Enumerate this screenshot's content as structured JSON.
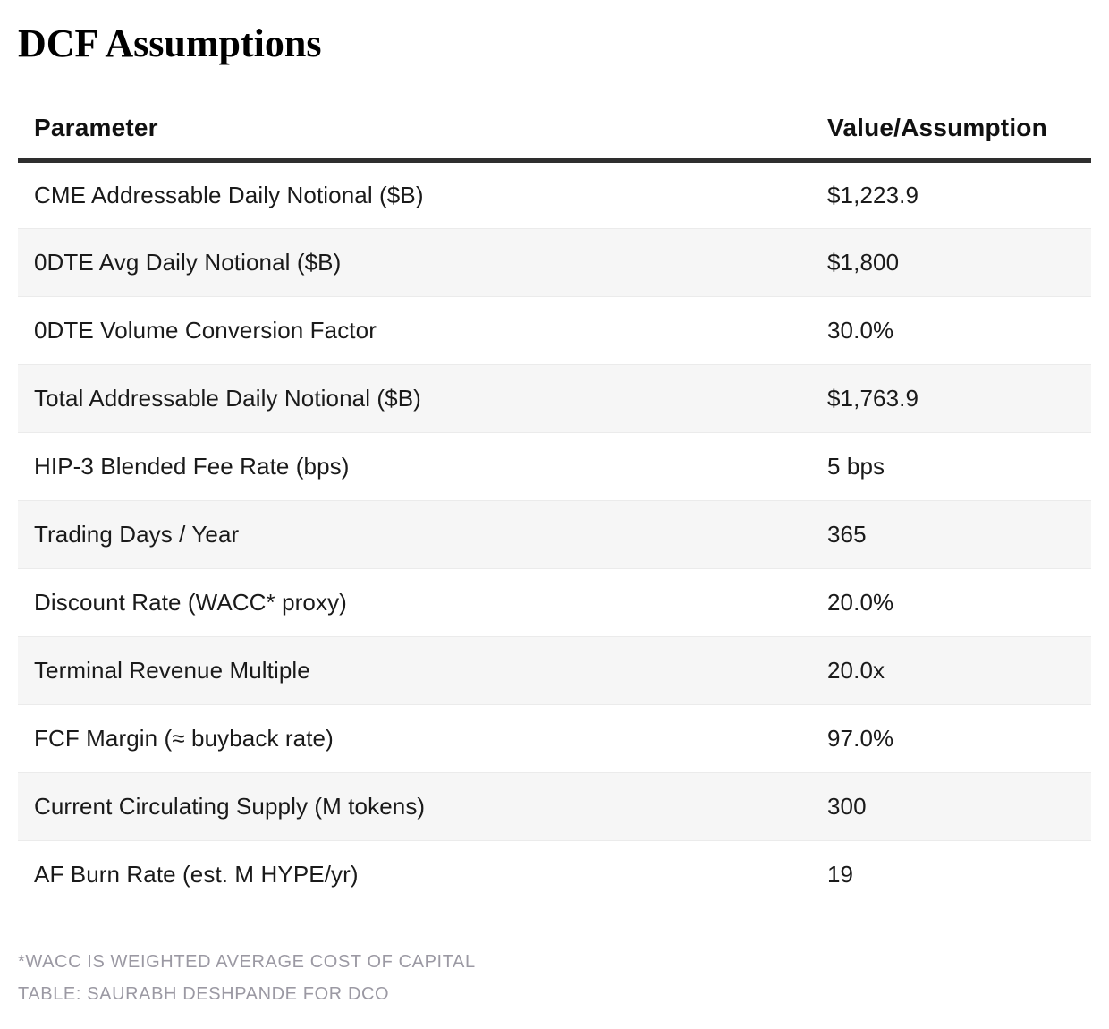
{
  "page_title": "DCF Assumptions",
  "chart_data": {
    "type": "table",
    "title": "DCF Assumptions",
    "columns": [
      "Parameter",
      "Value/Assumption"
    ],
    "rows": [
      [
        "CME Addressable Daily Notional ($B)",
        "$1,223.9"
      ],
      [
        "0DTE Avg Daily Notional ($B)",
        "$1,800"
      ],
      [
        "0DTE Volume Conversion Factor",
        "30.0%"
      ],
      [
        "Total Addressable Daily Notional ($B)",
        "$1,763.9"
      ],
      [
        "HIP-3 Blended Fee Rate (bps)",
        "5 bps"
      ],
      [
        "Trading Days / Year",
        "365"
      ],
      [
        "Discount Rate (WACC* proxy)",
        "20.0%"
      ],
      [
        "Terminal Revenue Multiple",
        "20.0x"
      ],
      [
        "FCF Margin (≈ buyback rate)",
        "97.0%"
      ],
      [
        "Current Circulating Supply (M tokens)",
        "300"
      ],
      [
        "AF Burn Rate (est. M HYPE/yr)",
        "19"
      ]
    ],
    "notes": [
      "*WACC IS WEIGHTED AVERAGE COST OF CAPITAL",
      "TABLE: SAURABH DESHPANDE FOR DCO"
    ],
    "layout": {
      "striped": true,
      "stripe_color": "#f6f6f6",
      "row_border_color": "#ebebeb",
      "header_rule_color": "#2e2e2e",
      "grid": "horizontal-stripes-only"
    }
  },
  "colors": {
    "background": "#ffffff",
    "text": "#1a1a1a",
    "title": "#000000",
    "stripe": "#f6f6f6",
    "header_rule": "#2e2e2e",
    "footnote": "#9b99a3"
  }
}
